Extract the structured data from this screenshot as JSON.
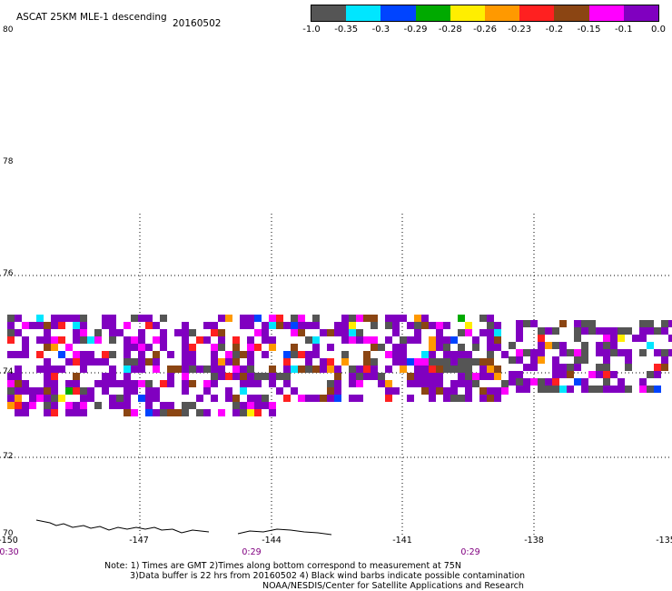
{
  "header": {
    "title": "ASCAT 25KM MLE-1 descending",
    "date": "20160502"
  },
  "colorbar": {
    "colors": [
      "#555555",
      "#00e6ff",
      "#0044ff",
      "#00aa00",
      "#ffee00",
      "#ff9900",
      "#ff2020",
      "#8b4513",
      "#ff00ff",
      "#8000c0"
    ],
    "labels": [
      "-1.0",
      "-0.35",
      "-0.3",
      "-0.29",
      "-0.28",
      "-0.26",
      "-0.23",
      "-0.2",
      "-0.15",
      "-0.1",
      "0.0"
    ]
  },
  "axes": {
    "lat_labels": [
      "80",
      "78",
      "76",
      "74",
      "72",
      "70"
    ],
    "lon_labels": [
      "-150",
      "-147",
      "-144",
      "-141",
      "-138",
      "-135"
    ],
    "time_labels": [
      "0:30",
      "0:29",
      "0:29"
    ]
  },
  "notes": {
    "line1": "Note: 1) Times are GMT 2)Times along bottom correspond to measurement at 75N",
    "line2": "3)Data buffer is 22 hrs from 20160502 4) Black wind barbs indicate possible contamination",
    "line3": "NOAA/NESDIS/Center for Satellite Applications and Research"
  }
}
